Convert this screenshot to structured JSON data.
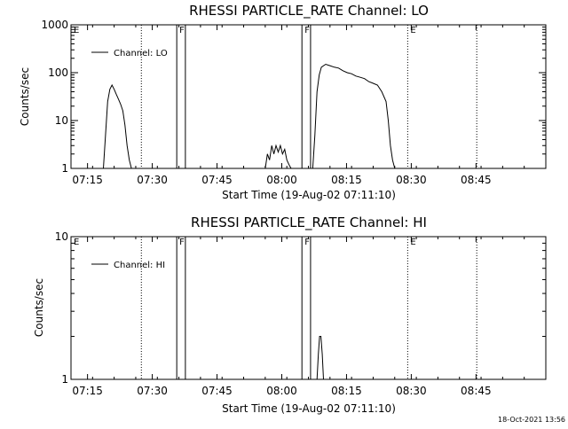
{
  "footer_timestamp": "18-Oct-2021 13:56",
  "chart_data": [
    {
      "type": "line",
      "title": "RHESSI PARTICLE_RATE Channel: LO",
      "xlabel": "Start Time (19-Aug-02 07:11:10)",
      "ylabel": "Counts/sec",
      "yscale": "log",
      "ylim": [
        1,
        1000
      ],
      "ytick_labels": [
        "1",
        "10",
        "100",
        "1000"
      ],
      "ytick_values": [
        1,
        10,
        100,
        1000
      ],
      "xlim_min": [
        0,
        110
      ],
      "xtick_labels": [
        "07:15",
        "07:30",
        "07:45",
        "08:00",
        "08:15",
        "08:30",
        "08:45"
      ],
      "xtick_min": [
        3.83,
        18.83,
        33.83,
        48.83,
        63.83,
        78.83,
        93.83
      ],
      "legend": {
        "label": "Channel: LO",
        "placement": "top-left"
      },
      "markers": [
        {
          "label": "E",
          "x_min": 0,
          "style": "none"
        },
        {
          "label": "F",
          "x_min": 24.5,
          "style": "solid"
        },
        {
          "label": "",
          "x_min": 26.5,
          "style": "solid"
        },
        {
          "label": "F",
          "x_min": 53.5,
          "style": "solid"
        },
        {
          "label": "",
          "x_min": 55.5,
          "style": "solid"
        },
        {
          "label": "E",
          "x_min": 78.0,
          "style": "dotted"
        },
        {
          "label": "",
          "x_min": 16.3,
          "style": "dotted"
        },
        {
          "label": "",
          "x_min": 94.0,
          "style": "dotted"
        }
      ],
      "series": [
        {
          "name": "Channel: LO",
          "x": [
            7.5,
            8.0,
            8.5,
            9.0,
            9.5,
            10.0,
            10.5,
            11.0,
            11.5,
            12.0,
            12.5,
            13.0,
            13.5,
            14.0
          ],
          "y": [
            1.0,
            5.0,
            25.0,
            45.0,
            55.0,
            45.0,
            35.0,
            28.0,
            22.0,
            16.0,
            8.0,
            3.0,
            1.5,
            1.0
          ]
        },
        {
          "name": "Channel: LO",
          "x": [
            45.0,
            45.5,
            46.0,
            46.5,
            47.0,
            47.5,
            48.0,
            48.5,
            49.0,
            49.5,
            50.0,
            50.5,
            51.0
          ],
          "y": [
            1.0,
            2.0,
            1.5,
            3.0,
            2.0,
            3.0,
            2.2,
            3.0,
            2.0,
            2.5,
            1.5,
            1.2,
            1.0
          ]
        },
        {
          "name": "Channel: LO",
          "x": [
            56.0,
            56.5,
            57.0,
            57.5,
            58.0,
            59.0,
            60.0,
            61.0,
            62.0,
            63.0,
            64.0,
            65.0,
            66.0,
            67.0,
            68.0,
            69.0,
            70.0,
            71.0,
            72.0,
            73.0,
            73.5,
            74.0,
            74.5,
            75.0
          ],
          "y": [
            1.0,
            5.0,
            40.0,
            90.0,
            130.0,
            150.0,
            140.0,
            130.0,
            125.0,
            110.0,
            100.0,
            95.0,
            85.0,
            80.0,
            75.0,
            65.0,
            60.0,
            55.0,
            40.0,
            25.0,
            10.0,
            3.0,
            1.5,
            1.0
          ]
        }
      ]
    },
    {
      "type": "line",
      "title": "RHESSI PARTICLE_RATE Channel: HI",
      "xlabel": "Start Time (19-Aug-02 07:11:10)",
      "ylabel": "Counts/sec",
      "yscale": "log",
      "ylim": [
        1,
        10
      ],
      "ytick_labels": [
        "1",
        "10"
      ],
      "ytick_values": [
        1,
        10
      ],
      "xlim_min": [
        0,
        110
      ],
      "xtick_labels": [
        "07:15",
        "07:30",
        "07:45",
        "08:00",
        "08:15",
        "08:30",
        "08:45"
      ],
      "xtick_min": [
        3.83,
        18.83,
        33.83,
        48.83,
        63.83,
        78.83,
        93.83
      ],
      "legend": {
        "label": "Channel: HI",
        "placement": "top-left"
      },
      "markers": [
        {
          "label": "E",
          "x_min": 0,
          "style": "none"
        },
        {
          "label": "F",
          "x_min": 24.5,
          "style": "solid"
        },
        {
          "label": "",
          "x_min": 26.5,
          "style": "solid"
        },
        {
          "label": "F",
          "x_min": 53.5,
          "style": "solid"
        },
        {
          "label": "",
          "x_min": 55.5,
          "style": "solid"
        },
        {
          "label": "E",
          "x_min": 78.0,
          "style": "dotted"
        },
        {
          "label": "",
          "x_min": 16.3,
          "style": "dotted"
        },
        {
          "label": "",
          "x_min": 94.0,
          "style": "dotted"
        }
      ],
      "series": [
        {
          "name": "Channel: HI",
          "x": [
            57.0,
            57.3,
            57.6,
            57.9,
            58.2,
            58.5
          ],
          "y": [
            1.0,
            1.5,
            2.0,
            2.0,
            1.5,
            1.0
          ]
        }
      ]
    }
  ]
}
